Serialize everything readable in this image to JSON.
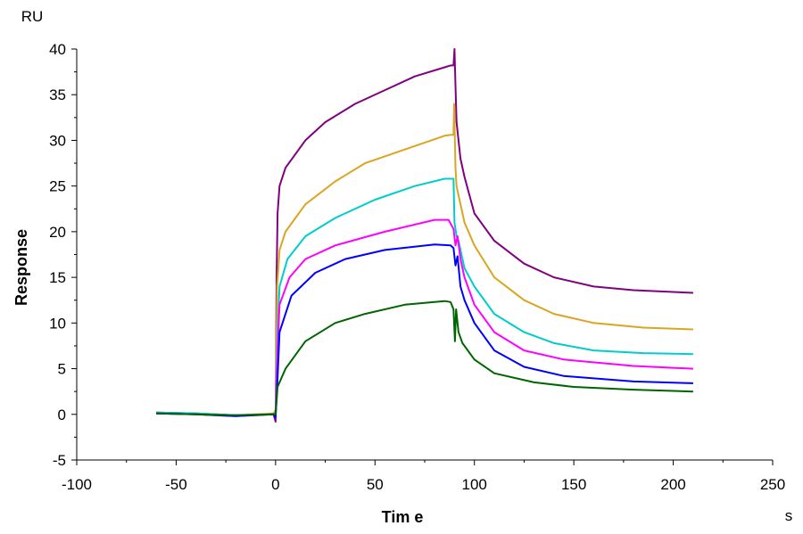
{
  "chart_data": {
    "type": "line",
    "title": "",
    "xlabel": "Tim e",
    "xunit": "s",
    "ylabel": "Response",
    "yunit": "RU",
    "xlim": [
      -100,
      250
    ],
    "ylim": [
      -5,
      40
    ],
    "xticks": [
      -100,
      -50,
      0,
      50,
      100,
      150,
      200,
      250
    ],
    "yticks": [
      -5,
      0,
      5,
      10,
      15,
      20,
      25,
      30,
      35,
      40
    ],
    "grid": false,
    "legend": "none",
    "series": [
      {
        "color": "#800080",
        "points": [
          [
            -60,
            0.2
          ],
          [
            -40,
            0.1
          ],
          [
            -20,
            -0.1
          ],
          [
            -1,
            0
          ],
          [
            0,
            -0.8
          ],
          [
            0.5,
            15
          ],
          [
            1,
            22
          ],
          [
            2,
            25
          ],
          [
            5,
            27
          ],
          [
            15,
            30
          ],
          [
            25,
            32
          ],
          [
            40,
            34
          ],
          [
            55,
            35.5
          ],
          [
            70,
            37
          ],
          [
            85,
            38
          ],
          [
            88,
            38.2
          ],
          [
            89.5,
            38.2
          ],
          [
            90,
            40
          ],
          [
            90.5,
            36
          ],
          [
            91,
            32
          ],
          [
            93,
            28
          ],
          [
            95,
            26
          ],
          [
            100,
            22
          ],
          [
            110,
            19
          ],
          [
            125,
            16.5
          ],
          [
            140,
            15
          ],
          [
            160,
            14
          ],
          [
            180,
            13.6
          ],
          [
            210,
            13.3
          ]
        ]
      },
      {
        "color": "#DAA520",
        "points": [
          [
            -60,
            0.1
          ],
          [
            -40,
            0.1
          ],
          [
            -20,
            -0.1
          ],
          [
            -1,
            0.1
          ],
          [
            0,
            0.5
          ],
          [
            0.8,
            14
          ],
          [
            2,
            18
          ],
          [
            5,
            20
          ],
          [
            15,
            23
          ],
          [
            30,
            25.5
          ],
          [
            45,
            27.5
          ],
          [
            65,
            29
          ],
          [
            85,
            30.5
          ],
          [
            88,
            30.6
          ],
          [
            89.5,
            30.6
          ],
          [
            89.8,
            34
          ],
          [
            90.5,
            27
          ],
          [
            91,
            25
          ],
          [
            92,
            24
          ],
          [
            95,
            21
          ],
          [
            100,
            18.5
          ],
          [
            110,
            15
          ],
          [
            125,
            12.5
          ],
          [
            140,
            11
          ],
          [
            160,
            10
          ],
          [
            185,
            9.5
          ],
          [
            210,
            9.3
          ]
        ]
      },
      {
        "color": "#00CCCC",
        "points": [
          [
            -60,
            0.2
          ],
          [
            -40,
            0.1
          ],
          [
            -20,
            -0.1
          ],
          [
            -1,
            0
          ],
          [
            0,
            0.2
          ],
          [
            1,
            9
          ],
          [
            2,
            14
          ],
          [
            6,
            17
          ],
          [
            15,
            19.5
          ],
          [
            30,
            21.5
          ],
          [
            50,
            23.5
          ],
          [
            70,
            25
          ],
          [
            85,
            25.8
          ],
          [
            88,
            25.8
          ],
          [
            89.5,
            25.8
          ],
          [
            90,
            21
          ],
          [
            91,
            19.5
          ],
          [
            92,
            19
          ],
          [
            95,
            16
          ],
          [
            100,
            14
          ],
          [
            110,
            11
          ],
          [
            125,
            9
          ],
          [
            140,
            7.8
          ],
          [
            160,
            7
          ],
          [
            185,
            6.7
          ],
          [
            210,
            6.6
          ]
        ]
      },
      {
        "color": "#FF00FF",
        "points": [
          [
            -60,
            0.1
          ],
          [
            -40,
            0
          ],
          [
            -20,
            -0.2
          ],
          [
            -1,
            0
          ],
          [
            0,
            0
          ],
          [
            1,
            7
          ],
          [
            2,
            12
          ],
          [
            7,
            15
          ],
          [
            15,
            17
          ],
          [
            30,
            18.5
          ],
          [
            55,
            20
          ],
          [
            80,
            21.3
          ],
          [
            87,
            21.3
          ],
          [
            89.5,
            20.3
          ],
          [
            90.5,
            18.5
          ],
          [
            91.5,
            19.5
          ],
          [
            93,
            17
          ],
          [
            95,
            15
          ],
          [
            100,
            12
          ],
          [
            110,
            9
          ],
          [
            125,
            7
          ],
          [
            145,
            6
          ],
          [
            180,
            5.3
          ],
          [
            210,
            5
          ]
        ]
      },
      {
        "color": "#0000FF",
        "points": [
          [
            -60,
            0.1
          ],
          [
            -40,
            0
          ],
          [
            -20,
            -0.2
          ],
          [
            -1,
            0
          ],
          [
            0,
            -0.3
          ],
          [
            1,
            4
          ],
          [
            2,
            9
          ],
          [
            8,
            13
          ],
          [
            20,
            15.5
          ],
          [
            35,
            17
          ],
          [
            55,
            18
          ],
          [
            80,
            18.6
          ],
          [
            88,
            18.5
          ],
          [
            89.5,
            18.2
          ],
          [
            90.5,
            16.3
          ],
          [
            91.5,
            17.3
          ],
          [
            93,
            14
          ],
          [
            95,
            12.5
          ],
          [
            100,
            10
          ],
          [
            110,
            7
          ],
          [
            125,
            5.2
          ],
          [
            145,
            4.2
          ],
          [
            180,
            3.6
          ],
          [
            210,
            3.4
          ]
        ]
      },
      {
        "color": "#006400",
        "points": [
          [
            -60,
            0.1
          ],
          [
            -40,
            0
          ],
          [
            -20,
            -0.1
          ],
          [
            -1,
            0
          ],
          [
            0,
            0
          ],
          [
            1,
            3
          ],
          [
            5,
            5
          ],
          [
            15,
            8
          ],
          [
            30,
            10
          ],
          [
            45,
            11
          ],
          [
            65,
            12
          ],
          [
            85,
            12.4
          ],
          [
            88,
            12.3
          ],
          [
            89.5,
            11.5
          ],
          [
            90.2,
            8
          ],
          [
            90.8,
            11.5
          ],
          [
            92,
            9
          ],
          [
            94,
            7.8
          ],
          [
            100,
            6
          ],
          [
            110,
            4.5
          ],
          [
            130,
            3.5
          ],
          [
            150,
            3
          ],
          [
            180,
            2.7
          ],
          [
            210,
            2.5
          ]
        ]
      }
    ]
  }
}
